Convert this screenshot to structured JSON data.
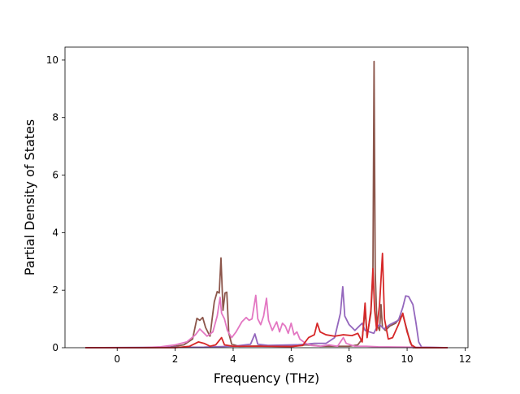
{
  "chart_data": {
    "type": "line",
    "title": "",
    "xlabel": "Frequency (THz)",
    "ylabel": "Partial Density of States",
    "xlim": [
      -1.8,
      12.1
    ],
    "ylim": [
      0,
      10.45
    ],
    "xticks": [
      0,
      2,
      4,
      6,
      8,
      10,
      12
    ],
    "yticks": [
      0,
      2,
      4,
      6,
      8,
      10
    ],
    "grid": false,
    "legend": "none",
    "series": [
      {
        "color": "#8c564b",
        "points": [
          [
            -1.1,
            0
          ],
          [
            1.0,
            0
          ],
          [
            1.8,
            0.02
          ],
          [
            2.3,
            0.1
          ],
          [
            2.6,
            0.3
          ],
          [
            2.75,
            1.02
          ],
          [
            2.85,
            0.95
          ],
          [
            2.95,
            1.05
          ],
          [
            3.05,
            0.7
          ],
          [
            3.2,
            0.4
          ],
          [
            3.35,
            1.6
          ],
          [
            3.45,
            1.95
          ],
          [
            3.52,
            1.9
          ],
          [
            3.58,
            3.12
          ],
          [
            3.65,
            1.3
          ],
          [
            3.72,
            1.9
          ],
          [
            3.78,
            1.93
          ],
          [
            3.85,
            0.5
          ],
          [
            3.95,
            0.12
          ],
          [
            4.2,
            0.05
          ],
          [
            5.0,
            0.06
          ],
          [
            6.0,
            0.04
          ],
          [
            6.5,
            0.1
          ],
          [
            6.8,
            0.08
          ],
          [
            7.0,
            0.05
          ],
          [
            8.0,
            0.05
          ],
          [
            8.3,
            0.1
          ],
          [
            8.45,
            0.3
          ],
          [
            8.55,
            1.3
          ],
          [
            8.62,
            0.4
          ],
          [
            8.75,
            1.2
          ],
          [
            8.82,
            2.5
          ],
          [
            8.86,
            9.95
          ],
          [
            8.9,
            2.6
          ],
          [
            8.96,
            0.8
          ],
          [
            9.05,
            0.6
          ],
          [
            9.1,
            1.5
          ],
          [
            9.15,
            0.7
          ],
          [
            9.25,
            0.6
          ],
          [
            9.4,
            0.75
          ],
          [
            9.6,
            0.85
          ],
          [
            9.85,
            1.15
          ],
          [
            10.0,
            0.6
          ],
          [
            10.1,
            0.2
          ],
          [
            10.2,
            0
          ],
          [
            11.4,
            0
          ]
        ]
      },
      {
        "color": "#9467bd",
        "points": [
          [
            -1.1,
            0
          ],
          [
            3.0,
            0.02
          ],
          [
            4.0,
            0.05
          ],
          [
            4.6,
            0.12
          ],
          [
            4.75,
            0.48
          ],
          [
            4.85,
            0.12
          ],
          [
            5.2,
            0.08
          ],
          [
            6.2,
            0.1
          ],
          [
            6.8,
            0.15
          ],
          [
            7.2,
            0.15
          ],
          [
            7.5,
            0.35
          ],
          [
            7.7,
            1.2
          ],
          [
            7.78,
            2.12
          ],
          [
            7.85,
            1.1
          ],
          [
            8.0,
            0.8
          ],
          [
            8.2,
            0.6
          ],
          [
            8.35,
            0.75
          ],
          [
            8.45,
            0.85
          ],
          [
            8.55,
            0.6
          ],
          [
            8.7,
            0.55
          ],
          [
            8.85,
            0.5
          ],
          [
            8.95,
            0.7
          ],
          [
            9.05,
            0.8
          ],
          [
            9.2,
            0.65
          ],
          [
            9.4,
            0.8
          ],
          [
            9.7,
            0.95
          ],
          [
            9.85,
            1.4
          ],
          [
            9.95,
            1.8
          ],
          [
            10.05,
            1.78
          ],
          [
            10.2,
            1.5
          ],
          [
            10.3,
            0.9
          ],
          [
            10.4,
            0.2
          ],
          [
            10.5,
            0.02
          ],
          [
            11.4,
            0
          ]
        ]
      },
      {
        "color": "#e377c2",
        "points": [
          [
            -1.1,
            0
          ],
          [
            0.8,
            0
          ],
          [
            1.5,
            0.03
          ],
          [
            2.0,
            0.1
          ],
          [
            2.4,
            0.2
          ],
          [
            2.7,
            0.45
          ],
          [
            2.85,
            0.65
          ],
          [
            2.95,
            0.55
          ],
          [
            3.1,
            0.4
          ],
          [
            3.3,
            0.55
          ],
          [
            3.45,
            1.1
          ],
          [
            3.55,
            1.75
          ],
          [
            3.6,
            1.2
          ],
          [
            3.7,
            1.0
          ],
          [
            3.8,
            0.6
          ],
          [
            3.95,
            0.35
          ],
          [
            4.1,
            0.55
          ],
          [
            4.3,
            0.9
          ],
          [
            4.45,
            1.05
          ],
          [
            4.55,
            0.95
          ],
          [
            4.65,
            1.0
          ],
          [
            4.78,
            1.82
          ],
          [
            4.85,
            1.0
          ],
          [
            4.95,
            0.8
          ],
          [
            5.05,
            1.1
          ],
          [
            5.15,
            1.72
          ],
          [
            5.22,
            0.95
          ],
          [
            5.35,
            0.6
          ],
          [
            5.5,
            0.9
          ],
          [
            5.6,
            0.55
          ],
          [
            5.7,
            0.85
          ],
          [
            5.8,
            0.75
          ],
          [
            5.9,
            0.5
          ],
          [
            6.0,
            0.85
          ],
          [
            6.1,
            0.45
          ],
          [
            6.2,
            0.55
          ],
          [
            6.3,
            0.3
          ],
          [
            6.5,
            0.15
          ],
          [
            6.7,
            0.08
          ],
          [
            7.0,
            0.05
          ],
          [
            7.3,
            0.1
          ],
          [
            7.6,
            0.05
          ],
          [
            7.8,
            0.35
          ],
          [
            7.9,
            0.15
          ],
          [
            8.2,
            0.05
          ],
          [
            8.6,
            0.05
          ],
          [
            9.0,
            0.03
          ],
          [
            10.0,
            0.02
          ],
          [
            11.4,
            0
          ]
        ]
      },
      {
        "color": "#d62728",
        "points": [
          [
            -1.1,
            0
          ],
          [
            2.0,
            0
          ],
          [
            2.5,
            0.05
          ],
          [
            2.8,
            0.2
          ],
          [
            3.0,
            0.15
          ],
          [
            3.2,
            0.05
          ],
          [
            3.4,
            0.1
          ],
          [
            3.6,
            0.35
          ],
          [
            3.7,
            0.1
          ],
          [
            4.0,
            0.05
          ],
          [
            5.0,
            0.05
          ],
          [
            6.0,
            0.04
          ],
          [
            6.4,
            0.08
          ],
          [
            6.6,
            0.35
          ],
          [
            6.8,
            0.45
          ],
          [
            6.9,
            0.85
          ],
          [
            7.0,
            0.55
          ],
          [
            7.2,
            0.45
          ],
          [
            7.5,
            0.4
          ],
          [
            7.8,
            0.45
          ],
          [
            8.1,
            0.42
          ],
          [
            8.3,
            0.5
          ],
          [
            8.45,
            0.2
          ],
          [
            8.55,
            1.55
          ],
          [
            8.62,
            0.35
          ],
          [
            8.75,
            1.3
          ],
          [
            8.82,
            2.75
          ],
          [
            8.88,
            1.3
          ],
          [
            8.95,
            0.6
          ],
          [
            9.05,
            1.5
          ],
          [
            9.15,
            3.28
          ],
          [
            9.22,
            1.0
          ],
          [
            9.35,
            0.3
          ],
          [
            9.5,
            0.35
          ],
          [
            9.7,
            0.8
          ],
          [
            9.85,
            1.2
          ],
          [
            10.0,
            0.55
          ],
          [
            10.15,
            0.1
          ],
          [
            10.3,
            0
          ],
          [
            11.4,
            0
          ]
        ]
      }
    ]
  }
}
